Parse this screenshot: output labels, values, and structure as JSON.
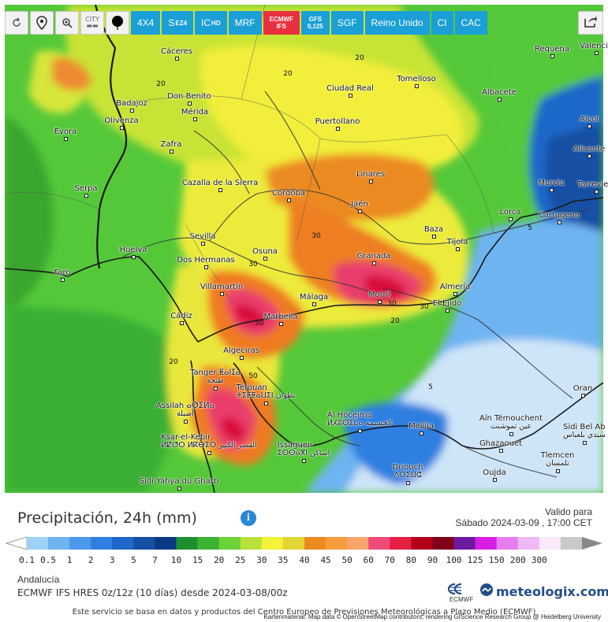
{
  "toolbar": {
    "tools": [
      {
        "name": "refresh",
        "icon": "refresh-icon"
      },
      {
        "name": "location",
        "icon": "pin-icon"
      },
      {
        "name": "zoom",
        "icon": "zoom-icon"
      },
      {
        "name": "city",
        "label": "CITY"
      },
      {
        "name": "dot",
        "icon": "dot-icon"
      }
    ],
    "models": [
      {
        "label": "4X4",
        "active": false
      },
      {
        "label": "S",
        "sub": "EZ4",
        "active": false
      },
      {
        "label": "IC",
        "sub": "HD",
        "active": false
      },
      {
        "label": "MRF",
        "active": false
      },
      {
        "label": "ECMWF",
        "sub": "IFS",
        "active": true,
        "stacked": true
      },
      {
        "label": "GFS",
        "sub": "0,125",
        "active": false,
        "stacked": true
      },
      {
        "label": "SGF",
        "active": false
      },
      {
        "label": "Reino Unido",
        "active": false
      },
      {
        "label": "CI",
        "active": false
      },
      {
        "label": "CAC",
        "active": false
      }
    ]
  },
  "map": {
    "attribution": "Kartenmaterial: Map data © OpenStreetMap contributors, rendering GIScience Research Group @ Heidelberg University",
    "cities": [
      {
        "name": "Cáceres"
      },
      {
        "name": "Badajoz"
      },
      {
        "name": "Olivenza"
      },
      {
        "name": "Don Benito"
      },
      {
        "name": "Mérida"
      },
      {
        "name": "Zafra"
      },
      {
        "name": "Évora"
      },
      {
        "name": "Serpa"
      },
      {
        "name": "Cazalla de la Sierra"
      },
      {
        "name": "Córdoba"
      },
      {
        "name": "Ciudad Real"
      },
      {
        "name": "Puertollano"
      },
      {
        "name": "Tomelloso"
      },
      {
        "name": "Albacete"
      },
      {
        "name": "Requena"
      },
      {
        "name": "Linares"
      },
      {
        "name": "Jaén"
      },
      {
        "name": "Baza"
      },
      {
        "name": "Tíjola"
      },
      {
        "name": "Lorca"
      },
      {
        "name": "Murcia"
      },
      {
        "name": "Cartagena"
      },
      {
        "name": "Alicante"
      },
      {
        "name": "Alcoi"
      },
      {
        "name": "Huelva"
      },
      {
        "name": "Faro"
      },
      {
        "name": "Sevilla"
      },
      {
        "name": "Dos Hermanas"
      },
      {
        "name": "Osuna"
      },
      {
        "name": "Granada"
      },
      {
        "name": "Villamartín"
      },
      {
        "name": "Málaga"
      },
      {
        "name": "Motril"
      },
      {
        "name": "Almería"
      },
      {
        "name": "El Ejido"
      },
      {
        "name": "Cádiz"
      },
      {
        "name": "Marbella"
      },
      {
        "name": "Algeciras"
      },
      {
        "name": "Tanger ⵟⴰⵏⵊⴰ",
        "sub": "طنجة"
      },
      {
        "name": "Tétouan",
        "sub": "ⵜⵉⵟⵟⴰⵡⵉⵏ تطوان"
      },
      {
        "name": "Assilah ⴰⵚⵉⵍⴰ",
        "sub": "أصيلة"
      },
      {
        "name": "Ksar-el-Kebir",
        "sub": "ⵍⵇⵚⵔ ⵍⴽⴱⵉⵔ القصر الكبير"
      },
      {
        "name": "Al Hoceima",
        "sub": "ⵍⵃⵓⵙⵉⵎⴰ الحسيمة"
      },
      {
        "name": "Issaguen",
        "sub": "ⵉⵙⵙⴰⴳⵏ إساكن"
      },
      {
        "name": "Melilla"
      },
      {
        "name": "Driouch",
        "sub": "ⴷⵔⵉⵡⵛ"
      },
      {
        "name": "Oujda"
      },
      {
        "name": "Aïn Témouchent",
        "sub": "عين تموشنت"
      },
      {
        "name": "Ghazaouet"
      },
      {
        "name": "Tlemcen",
        "sub": "تلمسان"
      },
      {
        "name": "Sidi Yahya du Gharb"
      },
      {
        "name": "Oran"
      },
      {
        "name": "Sidi Bel Ab",
        "sub": "سيدي بلعباس"
      },
      {
        "name": "Valencia"
      },
      {
        "name": "Torrevieja"
      }
    ],
    "isolines": [
      "20",
      "20",
      "20",
      "30",
      "30",
      "30",
      "50",
      "50",
      "20",
      "20",
      "30",
      "5",
      "5"
    ]
  },
  "legend": {
    "title": "Precipitación, 24h (mm)",
    "valid_label": "Valido para",
    "valid_date": "Sábado 2024-03-09 , 17:00 CET",
    "region": "Andalucía",
    "model_run": "ECMWF IFS HRES 0z/12z (10 días) desde 2024-03-08/00z",
    "brand": "meteologix.com",
    "ecmwf": "ECMWF",
    "footer": "Este servicio se basa en datos y productos del Centro Europeo de Previsiones Meteorológicas a Plazo Medio (ECMWF)",
    "scale": [
      {
        "value": "0.1",
        "color": "#9fd0f7"
      },
      {
        "value": "0.5",
        "color": "#6eb4f1"
      },
      {
        "value": "1",
        "color": "#4b98ec"
      },
      {
        "value": "2",
        "color": "#2f7fe0"
      },
      {
        "value": "3",
        "color": "#1f67c9"
      },
      {
        "value": "5",
        "color": "#174fa3"
      },
      {
        "value": "7",
        "color": "#0d3a85"
      },
      {
        "value": "10",
        "color": "#1e8f2e"
      },
      {
        "value": "15",
        "color": "#3db334"
      },
      {
        "value": "20",
        "color": "#6dd13a"
      },
      {
        "value": "25",
        "color": "#b8e23a"
      },
      {
        "value": "30",
        "color": "#f2f23a"
      },
      {
        "value": "35",
        "color": "#e3d534"
      },
      {
        "value": "40",
        "color": "#ed8a1f"
      },
      {
        "value": "45",
        "color": "#f59d3d"
      },
      {
        "value": "50",
        "color": "#f7a56a"
      },
      {
        "value": "60",
        "color": "#ee4b78"
      },
      {
        "value": "70",
        "color": "#e52045"
      },
      {
        "value": "80",
        "color": "#b5001b"
      },
      {
        "value": "90",
        "color": "#7f0018"
      },
      {
        "value": "100",
        "color": "#6b1aa0"
      },
      {
        "value": "125",
        "color": "#d81ee6"
      },
      {
        "value": "150",
        "color": "#e77ef0"
      },
      {
        "value": "200",
        "color": "#efb9f3"
      },
      {
        "value": "300",
        "color": "#f9e9fb"
      },
      {
        "value": "",
        "color": "#c9c9c9"
      }
    ]
  }
}
